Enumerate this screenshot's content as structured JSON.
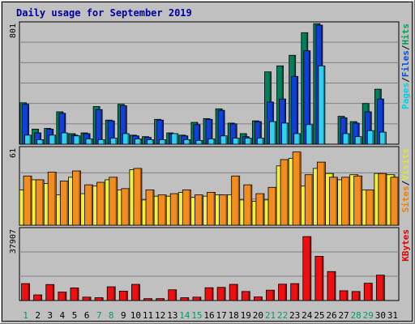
{
  "chart_data": {
    "type": "bar",
    "title": "Daily usage for September 2019",
    "categories": [
      "1",
      "2",
      "3",
      "4",
      "5",
      "6",
      "7",
      "8",
      "9",
      "10",
      "11",
      "12",
      "13",
      "14",
      "15",
      "16",
      "17",
      "18",
      "19",
      "20",
      "21",
      "22",
      "23",
      "24",
      "25",
      "26",
      "27",
      "28",
      "29",
      "30",
      "31"
    ],
    "weekend_days": [
      1,
      7,
      8,
      14,
      15,
      21,
      22,
      28,
      29
    ],
    "panels": [
      {
        "name": "hits-files-pages",
        "ymax_label": "801",
        "ymax": 801,
        "right_label_parts": [
          "Pages",
          "/",
          "Files",
          "/",
          "Hits"
        ],
        "right_label_colors": [
          "#00d0e0",
          "#000000",
          "#0050e0",
          "#000000",
          "#00a060"
        ],
        "series": [
          {
            "name": "Hits",
            "color": "#00805a",
            "values": [
              275,
              100,
              105,
              215,
              70,
              75,
              250,
              160,
              265,
              60,
              50,
              165,
              75,
              60,
              145,
              170,
              235,
              140,
              70,
              155,
              480,
              520,
              590,
              740,
              800,
              0,
              185,
              150,
              270,
              365,
              0
            ]
          },
          {
            "name": "Files",
            "color": "#1040d8",
            "values": [
              265,
              75,
              100,
              205,
              60,
              70,
              230,
              155,
              255,
              55,
              45,
              160,
              70,
              55,
              130,
              165,
              225,
              135,
              50,
              150,
              280,
              300,
              450,
              620,
              790,
              0,
              175,
              140,
              215,
              300,
              0
            ]
          },
          {
            "name": "Pages",
            "color": "#30d0f0",
            "values": [
              60,
              30,
              60,
              75,
              55,
              35,
              30,
              40,
              70,
              35,
              30,
              30,
              70,
              30,
              25,
              35,
              55,
              40,
              40,
              40,
              150,
              140,
              70,
              130,
              520,
              0,
              70,
              50,
              90,
              80,
              0
            ]
          }
        ]
      },
      {
        "name": "visits-sites",
        "ymax_label": "61",
        "ymax": 61,
        "right_label_parts": [
          "Sites",
          "/",
          "Visits"
        ],
        "right_label_colors": [
          "#f08000",
          "#000000",
          "#e0e040"
        ],
        "series": [
          {
            "name": "Visits",
            "color": "#f0f040",
            "values": [
              28,
              36,
              33,
              24,
              38,
              25,
              31,
              36,
              28,
              44,
              20,
              23,
              23,
              26,
              22,
              23,
              24,
              24,
              20,
              19,
              20,
              47,
              53,
              31,
              45,
              41,
              36,
              40,
              28,
              41,
              40
            ]
          },
          {
            "name": "Sites",
            "color": "#f08c20",
            "values": [
              39,
              36,
              42,
              35,
              43,
              32,
              34,
              38,
              29,
              45,
              28,
              24,
              25,
              28,
              24,
              26,
              24,
              39,
              32,
              25,
              30,
              52,
              58,
              40,
              50,
              38,
              38,
              39,
              28,
              41,
              38
            ]
          }
        ]
      },
      {
        "name": "kbytes",
        "ymax_label": "37907",
        "ymax": 37907,
        "right_label_parts": [
          "KBytes"
        ],
        "right_label_colors": [
          "#e00000"
        ],
        "series": [
          {
            "name": "KBytes",
            "color": "#ee1010",
            "values": [
              9000,
              3000,
              8500,
              4500,
              6700,
              1800,
              1500,
              7300,
              5000,
              8600,
              1000,
              1000,
              5700,
              1500,
              1800,
              6800,
              7000,
              8600,
              4800,
              1900,
              5500,
              8700,
              9000,
              34000,
              23500,
              15400,
              5200,
              4800,
              9200,
              13500,
              0
            ]
          }
        ]
      }
    ]
  }
}
